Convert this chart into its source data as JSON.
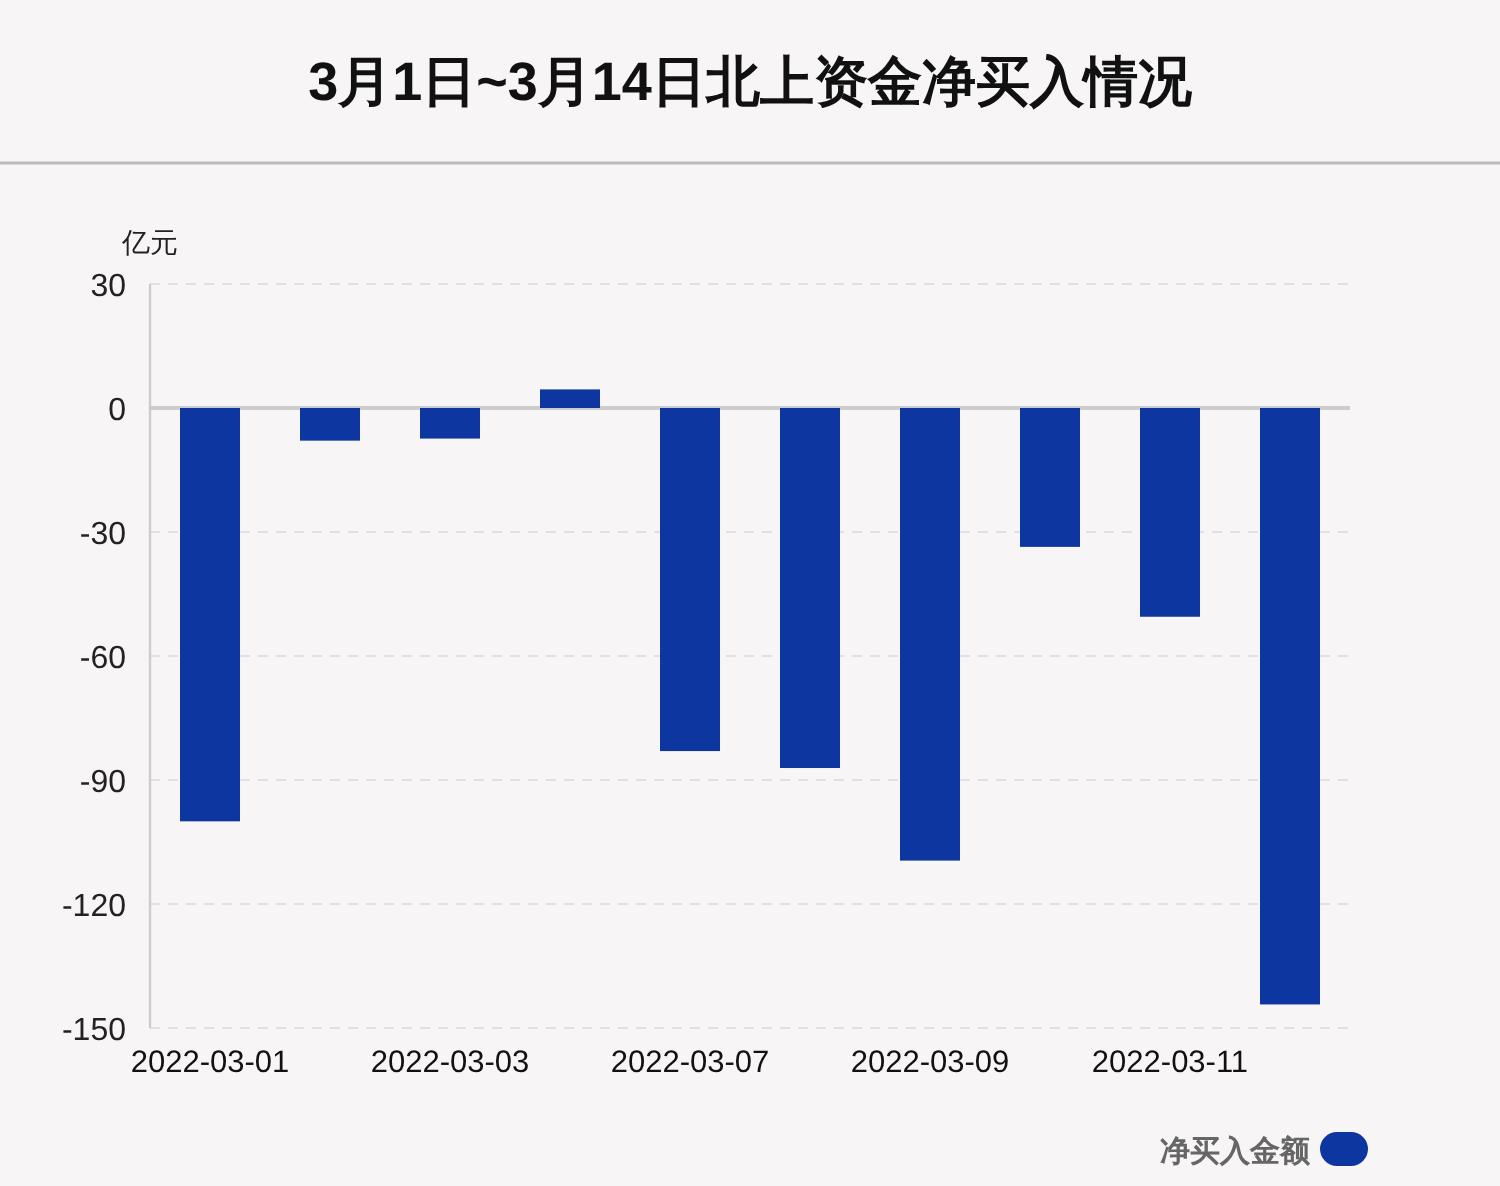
{
  "chart_data": {
    "type": "bar",
    "title": "3月1日~3月14日北上资金净买入情况",
    "ylabel": "亿元",
    "categories": [
      "2022-03-01",
      null,
      "2022-03-03",
      null,
      "2022-03-07",
      null,
      "2022-03-09",
      null,
      "2022-03-11",
      null
    ],
    "series": [
      {
        "name": "净买入金额",
        "color": "#0e36a0",
        "values": [
          -100.0,
          -7.9,
          -7.4,
          4.5,
          -83.0,
          -87.1,
          -109.5,
          -33.6,
          -50.5,
          -144.3
        ]
      }
    ],
    "ylim": [
      -150,
      30
    ],
    "yticks": [
      -150,
      -120,
      -90,
      -60,
      -30,
      0,
      30
    ],
    "grid": "y",
    "legend": "bottom right"
  }
}
